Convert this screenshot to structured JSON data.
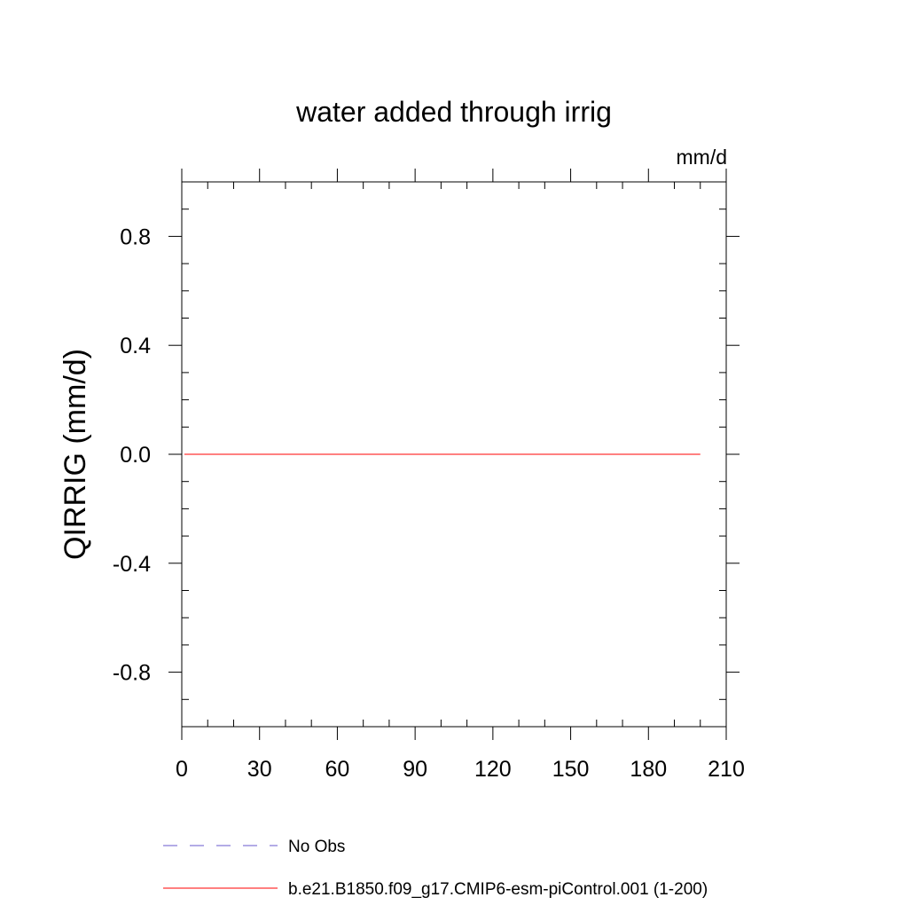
{
  "chart_data": {
    "type": "line",
    "title": "water added through irrig",
    "units_label": "mm/d",
    "ylabel": "QIRRIG  (mm/d)",
    "xlabel": "",
    "xlim": [
      0,
      210
    ],
    "ylim": [
      -1,
      1
    ],
    "x_ticks": [
      0,
      30,
      60,
      90,
      120,
      150,
      180,
      210
    ],
    "x_tick_labels": [
      "0",
      "30",
      "60",
      "90",
      "120",
      "150",
      "180",
      "210"
    ],
    "y_ticks": [
      0.8,
      0.4,
      0.0,
      -0.4,
      -0.8
    ],
    "y_tick_labels": [
      "0.8",
      "0.4",
      "0.0",
      "-0.4",
      "-0.8"
    ],
    "grid": false,
    "legend_position": "bottom",
    "series": [
      {
        "name": "No Obs",
        "color": "#6a5acd",
        "dash": "dashed",
        "x": [],
        "y": []
      },
      {
        "name": "b.e21.B1850.f09_g17.CMIP6-esm-piControl.001 (1-200)",
        "color": "#ff0000",
        "dash": "solid",
        "x": [
          1,
          200
        ],
        "y": [
          0.0,
          0.0
        ]
      }
    ]
  }
}
